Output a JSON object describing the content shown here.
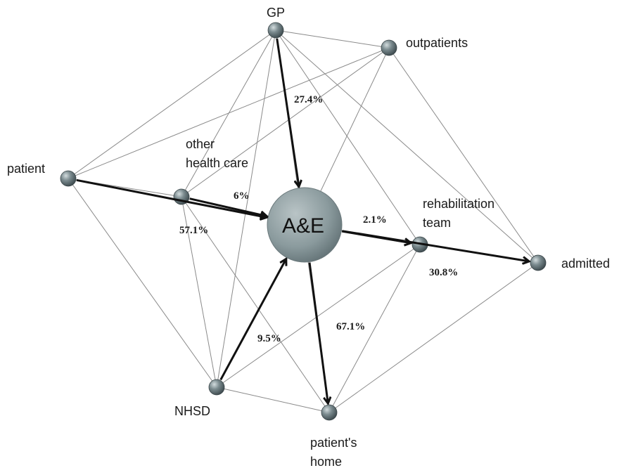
{
  "nodes": [
    {
      "id": "gp",
      "lines": [
        "GP"
      ]
    },
    {
      "id": "outpatients",
      "lines": [
        "outpatients"
      ]
    },
    {
      "id": "patient",
      "lines": [
        "patient"
      ]
    },
    {
      "id": "other",
      "lines": [
        "other",
        "health care"
      ]
    },
    {
      "id": "ae",
      "lines": [
        "A&E"
      ]
    },
    {
      "id": "rehab",
      "lines": [
        "rehabilitation",
        "team"
      ]
    },
    {
      "id": "admitted",
      "lines": [
        "admitted"
      ]
    },
    {
      "id": "nhsd",
      "lines": [
        "NHSD"
      ]
    },
    {
      "id": "home",
      "lines": [
        "patient's",
        "home"
      ]
    }
  ],
  "thin_edges": [
    [
      "gp",
      "outpatients"
    ],
    [
      "gp",
      "patient"
    ],
    [
      "gp",
      "other"
    ],
    [
      "gp",
      "rehab"
    ],
    [
      "gp",
      "admitted"
    ],
    [
      "gp",
      "nhsd"
    ],
    [
      "gp",
      "home"
    ],
    [
      "outpatients",
      "other"
    ],
    [
      "outpatients",
      "admitted"
    ],
    [
      "outpatients",
      "ae"
    ],
    [
      "patient",
      "other"
    ],
    [
      "patient",
      "nhsd"
    ],
    [
      "patient",
      "outpatients"
    ],
    [
      "other",
      "nhsd"
    ],
    [
      "other",
      "home"
    ],
    [
      "rehab",
      "nhsd"
    ],
    [
      "rehab",
      "home"
    ],
    [
      "admitted",
      "home"
    ],
    [
      "admitted",
      "ae"
    ],
    [
      "nhsd",
      "home"
    ]
  ],
  "flows": [
    {
      "from": "gp",
      "to": "ae",
      "label": "27.4%"
    },
    {
      "from": "other",
      "to": "ae",
      "label": "6%"
    },
    {
      "from": "patient",
      "to": "ae",
      "label": "57.1%"
    },
    {
      "from": "nhsd",
      "to": "ae",
      "label": "9.5%"
    },
    {
      "from": "ae",
      "to": "rehab",
      "label": "2.1%"
    },
    {
      "from": "ae",
      "to": "admitted",
      "label": "30.8%"
    },
    {
      "from": "ae",
      "to": "home",
      "label": "67.1%"
    }
  ],
  "colors": {
    "node_fill": "#6e7f83",
    "node_highlight": "#c9d3d5",
    "ae_fill": "#8e9c9f",
    "thin_edge": "#8a8a8a",
    "flow_edge": "#111111"
  }
}
